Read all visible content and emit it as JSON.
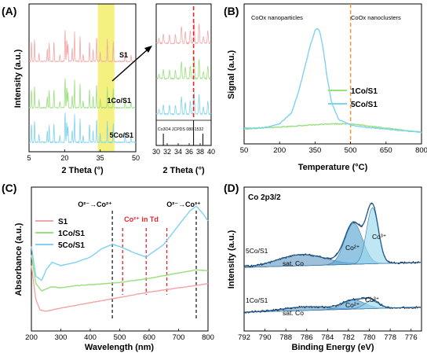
{
  "chart_data": [
    {
      "type": "line",
      "panel_label": "(A)",
      "xlabel": "2 Theta (°)",
      "ylabel": "Intensity (a.u.)",
      "xlim": [
        5,
        50
      ],
      "xticks": [
        5,
        20,
        35,
        50
      ],
      "highlight_range": [
        34,
        41
      ],
      "series": [
        {
          "name": "S1",
          "color": "#f4a6a6"
        },
        {
          "name": "1Co/S1",
          "color": "#98e07c"
        },
        {
          "name": "5Co/S1",
          "color": "#7ed3ee"
        }
      ],
      "peak_positions": [
        6.0,
        7.3,
        9.2,
        12.7,
        13.5,
        15.5,
        18.0,
        20.2,
        20.9,
        21.4,
        23.2,
        24.2,
        26.5,
        27.8,
        30.5,
        32.0,
        33.5,
        35.0,
        38.0,
        40.5,
        45.5,
        48.0
      ]
    },
    {
      "type": "line",
      "panel_label": "",
      "xlabel": "2 Theta (°)",
      "xlim": [
        30,
        40
      ],
      "xticks": [
        30,
        32,
        34,
        36,
        38,
        40
      ],
      "reference": "Co3O4 JCPDS 080-1532",
      "reference_line": 36.8,
      "reference_sticks": [
        31.3,
        36.8,
        38.5
      ]
    },
    {
      "type": "line",
      "panel_label": "(B)",
      "xlabel": "Temperature (°C)",
      "ylabel": "Signal (a.u.)",
      "xlim": [
        50,
        800
      ],
      "xticks": [
        50,
        200,
        350,
        500,
        650,
        800
      ],
      "divider_x": 500,
      "annotations": [
        "CoOx nanoparticles",
        "CoOx nanoclusters"
      ],
      "series": [
        {
          "name": "1Co/S1",
          "color": "#98e07c",
          "x": [
            50,
            200,
            350,
            400,
            500,
            650,
            800
          ],
          "y": [
            0.05,
            0.07,
            0.09,
            0.1,
            0.1,
            0.06,
            0.02
          ]
        },
        {
          "name": "5Co/S1",
          "color": "#7ed3ee",
          "x": [
            50,
            100,
            150,
            200,
            250,
            280,
            310,
            330,
            350,
            360,
            370,
            385,
            400,
            420,
            450,
            500,
            550,
            650,
            800
          ],
          "y": [
            0.06,
            0.06,
            0.07,
            0.1,
            0.2,
            0.4,
            0.66,
            0.84,
            0.98,
            1.0,
            0.97,
            0.8,
            0.55,
            0.3,
            0.14,
            0.09,
            0.07,
            0.05,
            0.02
          ]
        }
      ]
    },
    {
      "type": "line",
      "panel_label": "(C)",
      "xlabel": "Wavelength (nm)",
      "ylabel": "Absorbance (a.u.)",
      "xlim": [
        200,
        800
      ],
      "xticks": [
        200,
        300,
        400,
        500,
        600,
        700,
        800
      ],
      "annotations": [
        "O²⁻→Co²⁺",
        "Co²⁺ in Td",
        "O²⁻→Co³⁺"
      ],
      "black_dashes": [
        475,
        760
      ],
      "red_dashes": [
        510,
        590,
        660
      ],
      "series": [
        {
          "name": "S1",
          "color": "#f4a6a6",
          "x": [
            200,
            215,
            230,
            250,
            300,
            400,
            500,
            600,
            700,
            800
          ],
          "y": [
            0.52,
            0.2,
            0.1,
            0.09,
            0.12,
            0.17,
            0.22,
            0.27,
            0.31,
            0.35
          ]
        },
        {
          "name": "1Co/S1",
          "color": "#98e07c",
          "x": [
            200,
            215,
            235,
            250,
            270,
            300,
            350,
            400,
            500,
            550,
            600,
            700,
            760,
            800
          ],
          "y": [
            0.62,
            0.35,
            0.28,
            0.3,
            0.32,
            0.31,
            0.33,
            0.34,
            0.36,
            0.38,
            0.4,
            0.45,
            0.48,
            0.47
          ]
        },
        {
          "name": "5Co/S1",
          "color": "#7ed3ee",
          "x": [
            200,
            215,
            235,
            250,
            270,
            300,
            350,
            400,
            440,
            475,
            500,
            550,
            590,
            650,
            700,
            740,
            760,
            780,
            800
          ],
          "y": [
            0.7,
            0.42,
            0.38,
            0.48,
            0.55,
            0.52,
            0.55,
            0.6,
            0.68,
            0.72,
            0.7,
            0.64,
            0.6,
            0.72,
            0.9,
            1.04,
            1.08,
            1.02,
            0.94
          ]
        }
      ]
    },
    {
      "type": "line",
      "panel_label": "(D)",
      "title": "Co 2p3/2",
      "xlabel": "Binding Energy (eV)",
      "ylabel": "Intensity (a.u.)",
      "xlim": [
        792,
        775
      ],
      "xticks": [
        792,
        790,
        788,
        786,
        784,
        782,
        780,
        778,
        776
      ],
      "spectra": [
        {
          "name": "5Co/S1",
          "labels": [
            "Co²⁺",
            "Co³⁺",
            "sat. Co"
          ],
          "peaks": [
            {
              "name": "Co²⁺",
              "center": 781.5,
              "height": 0.55,
              "width": 1.2
            },
            {
              "name": "Co³⁺",
              "center": 779.7,
              "height": 0.75,
              "width": 0.8
            },
            {
              "name": "sat. Co",
              "center": 786.5,
              "height": 0.15,
              "width": 3.2
            }
          ]
        },
        {
          "name": "1Co/S1",
          "labels": [
            "Co²⁺",
            "Co³⁺",
            "sat. Co"
          ],
          "peaks": [
            {
              "name": "Co²⁺",
              "center": 781.5,
              "height": 0.12,
              "width": 1.5
            },
            {
              "name": "Co³⁺",
              "center": 779.8,
              "height": 0.1,
              "width": 1.0
            },
            {
              "name": "sat. Co",
              "center": 786.0,
              "height": 0.05,
              "width": 3.0
            }
          ]
        }
      ]
    }
  ]
}
